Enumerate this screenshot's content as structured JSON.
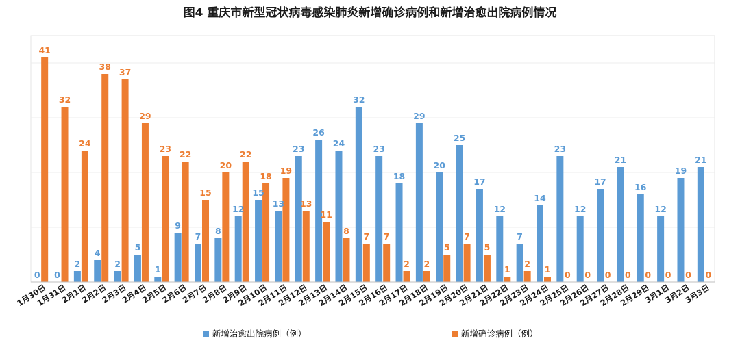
{
  "chart_data": {
    "type": "bar",
    "title": "图4   重庆市新型冠状病毒感染肺炎新增确诊病例和新增治愈出院病例情况",
    "categories": [
      "1月30日",
      "1月31日",
      "2月1日",
      "2月2日",
      "2月3日",
      "2月4日",
      "2月5日",
      "2月6日",
      "2月7日",
      "2月8日",
      "2月9日",
      "2月10日",
      "2月11日",
      "2月12日",
      "2月13日",
      "2月14日",
      "2月15日",
      "2月16日",
      "2月17日",
      "2月18日",
      "2月19日",
      "2月20日",
      "2月21日",
      "2月22日",
      "2月23日",
      "2月24日",
      "2月25日",
      "2月26日",
      "2月27日",
      "2月28日",
      "2月29日",
      "3月1日",
      "3月2日",
      "3月3日"
    ],
    "series": [
      {
        "name": "新增治愈出院病例（例）",
        "color": "#5b9bd5",
        "values": [
          0,
          0,
          2,
          4,
          2,
          5,
          1,
          9,
          7,
          8,
          12,
          15,
          13,
          23,
          26,
          24,
          32,
          23,
          18,
          29,
          20,
          25,
          17,
          12,
          7,
          14,
          23,
          12,
          17,
          21,
          16,
          12,
          19,
          21
        ]
      },
      {
        "name": "新增确诊病例（例）",
        "color": "#ed7d31",
        "values": [
          41,
          32,
          24,
          38,
          37,
          29,
          23,
          22,
          15,
          20,
          22,
          18,
          19,
          13,
          11,
          8,
          7,
          7,
          2,
          2,
          5,
          7,
          5,
          1,
          2,
          1,
          0,
          0,
          0,
          0,
          0,
          0,
          0,
          0
        ]
      }
    ],
    "ylim": [
      0,
      45
    ],
    "grid": true,
    "legend": "bottom"
  }
}
